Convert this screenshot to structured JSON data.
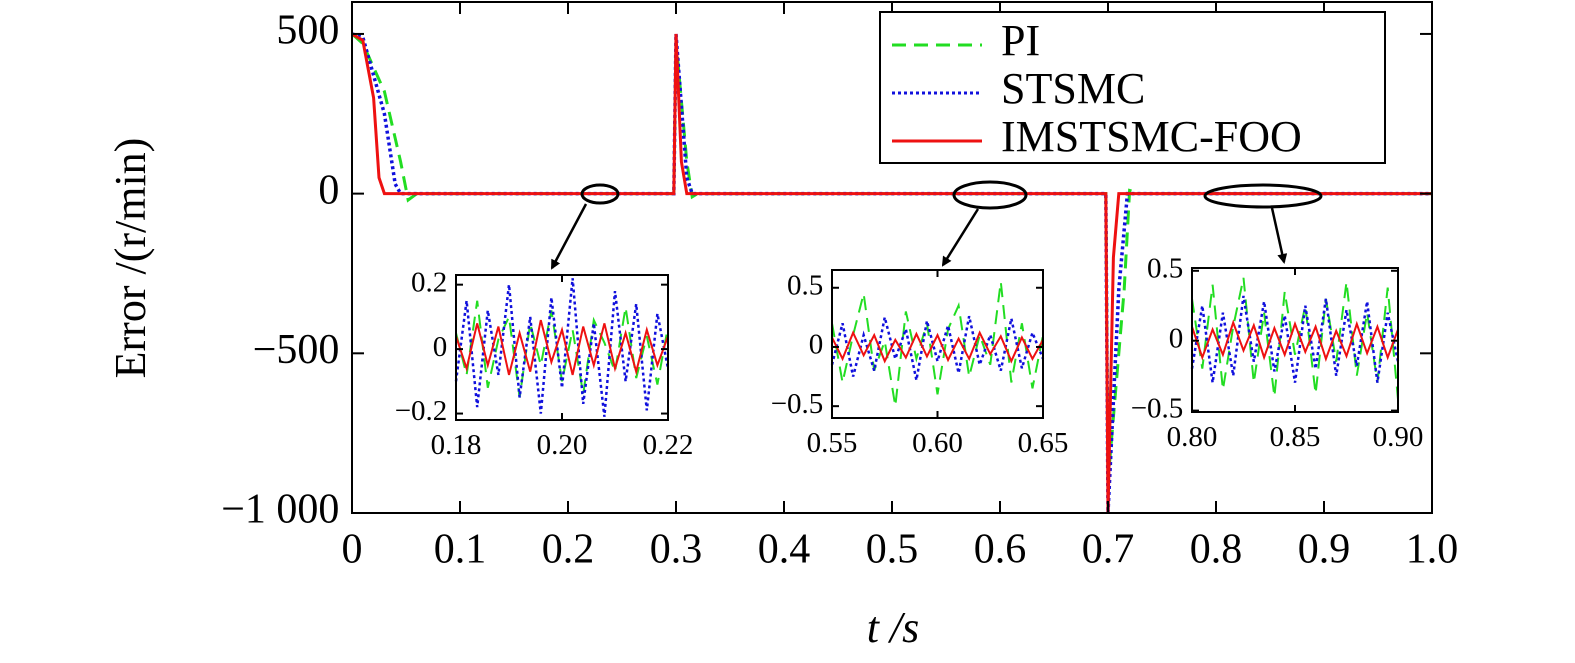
{
  "chart_data": [
    {
      "type": "line",
      "x_label": "t /s",
      "y_label": "Error /(r/min)",
      "legend": "upper right",
      "xlim": [
        0,
        1
      ],
      "ylim": [
        -1000,
        600
      ],
      "xticks": [
        0,
        0.1,
        0.2,
        0.3,
        0.4,
        0.5,
        0.6,
        0.7,
        0.8,
        0.9,
        {
          "value": 1,
          "label": "1.0"
        }
      ],
      "yticks": [
        500,
        0,
        {
          "value": -500,
          "label": "−500"
        },
        {
          "value": -1000,
          "label": "−1 000"
        }
      ],
      "series": [
        {
          "name": "PI",
          "color": "#22dd22",
          "style": "dashed",
          "x": [
            0,
            0.01,
            0.03,
            0.045,
            0.052,
            0.06,
            0.298,
            0.3,
            0.31,
            0.315,
            0.32,
            0.698,
            0.7,
            0.715,
            0.72,
            0.73,
            1
          ],
          "values": [
            500,
            470,
            320,
            100,
            -20,
            0,
            0,
            480,
            100,
            -10,
            0,
            0,
            -900,
            -300,
            10,
            0,
            0
          ]
        },
        {
          "name": "STSMC",
          "color": "#1010dd",
          "style": "dotted",
          "x": [
            0,
            0.01,
            0.03,
            0.04,
            0.045,
            0.298,
            0.3,
            0.31,
            0.315,
            0.698,
            0.7,
            0.71,
            0.718,
            1
          ],
          "values": [
            500,
            490,
            250,
            30,
            0,
            0,
            500,
            50,
            0,
            0,
            -1000,
            -300,
            0,
            0
          ]
        },
        {
          "name": "IMSTSMC-FOO",
          "color": "#ee1111",
          "style": "solid",
          "x": [
            0,
            0.01,
            0.02,
            0.025,
            0.03,
            0.298,
            0.3,
            0.305,
            0.31,
            0.698,
            0.7,
            0.705,
            0.71,
            1
          ],
          "values": [
            500,
            480,
            300,
            50,
            0,
            0,
            500,
            100,
            0,
            0,
            -1000,
            -200,
            0,
            0
          ]
        }
      ]
    },
    {
      "type": "line",
      "xlim": [
        0.18,
        0.22
      ],
      "ylim": [
        -0.22,
        0.23
      ],
      "xticks": [
        0.18,
        {
          "value": 0.2,
          "label": "0.20"
        },
        0.22
      ],
      "yticks": [
        0.2,
        0,
        {
          "value": -0.2,
          "label": "−0.2"
        }
      ],
      "x": [
        0.18,
        0.182,
        0.184,
        0.186,
        0.188,
        0.19,
        0.192,
        0.194,
        0.196,
        0.198,
        0.2,
        0.202,
        0.204,
        0.206,
        0.208,
        0.21,
        0.212,
        0.214,
        0.216,
        0.218,
        0.22
      ],
      "series": [
        {
          "color": "#22dd22",
          "style": "dashed",
          "values": [
            0.05,
            -0.08,
            0.15,
            -0.12,
            0.03,
            0.1,
            -0.15,
            0.08,
            -0.05,
            0.12,
            -0.1,
            0.06,
            -0.14,
            0.09,
            0.02,
            -0.07,
            0.13,
            -0.09,
            0.04,
            -0.11,
            0.07
          ]
        },
        {
          "color": "#1010dd",
          "style": "dotted",
          "values": [
            -0.1,
            0.15,
            -0.18,
            0.12,
            -0.08,
            0.2,
            -0.15,
            0.1,
            -0.2,
            0.16,
            -0.12,
            0.22,
            -0.17,
            0.08,
            -0.21,
            0.18,
            -0.1,
            0.14,
            -0.19,
            0.11,
            -0.06
          ]
        },
        {
          "color": "#ee1111",
          "style": "solid",
          "values": [
            0.04,
            -0.06,
            0.08,
            -0.05,
            0.07,
            -0.08,
            0.05,
            -0.07,
            0.09,
            -0.04,
            0.06,
            -0.08,
            0.07,
            -0.05,
            0.08,
            -0.06,
            0.05,
            -0.07,
            0.06,
            -0.05,
            0.04
          ]
        }
      ]
    },
    {
      "type": "line",
      "xlim": [
        0.55,
        0.65
      ],
      "ylim": [
        -0.6,
        0.65
      ],
      "xticks": [
        0.55,
        {
          "value": 0.6,
          "label": "0.60"
        },
        0.65
      ],
      "yticks": [
        0.5,
        0,
        {
          "value": -0.5,
          "label": "−0.5"
        }
      ],
      "x": [
        0.55,
        0.555,
        0.56,
        0.565,
        0.57,
        0.575,
        0.58,
        0.585,
        0.59,
        0.595,
        0.6,
        0.605,
        0.61,
        0.615,
        0.62,
        0.625,
        0.63,
        0.635,
        0.64,
        0.645,
        0.65
      ],
      "series": [
        {
          "color": "#22dd22",
          "style": "dashed",
          "values": [
            0.2,
            -0.3,
            0.1,
            0.45,
            -0.2,
            0.05,
            -0.5,
            0.3,
            -0.1,
            0.2,
            -0.4,
            0.15,
            0.35,
            -0.25,
            0.1,
            -0.15,
            0.55,
            -0.3,
            0.2,
            -0.35,
            0.1
          ]
        },
        {
          "color": "#1010dd",
          "style": "dotted",
          "values": [
            -0.15,
            0.2,
            -0.25,
            0.1,
            -0.2,
            0.25,
            -0.1,
            0.15,
            -0.28,
            0.22,
            -0.12,
            0.18,
            -0.22,
            0.26,
            -0.15,
            0.1,
            -0.2,
            0.24,
            -0.18,
            0.12,
            -0.1
          ]
        },
        {
          "color": "#ee1111",
          "style": "solid",
          "values": [
            0.08,
            -0.1,
            0.12,
            -0.07,
            0.1,
            -0.12,
            0.06,
            -0.09,
            0.11,
            -0.08,
            0.1,
            -0.11,
            0.07,
            -0.1,
            0.12,
            -0.06,
            0.09,
            -0.12,
            0.08,
            -0.1,
            0.06
          ]
        }
      ]
    },
    {
      "type": "line",
      "xlim": [
        0.8,
        0.9
      ],
      "ylim": [
        -0.51,
        0.52
      ],
      "xticks": [
        {
          "value": 0.8,
          "label": "0.80"
        },
        0.85,
        {
          "value": 0.9,
          "label": "0.90"
        }
      ],
      "yticks": [
        0.5,
        0,
        {
          "value": -0.5,
          "label": "−0.5"
        }
      ],
      "x": [
        0.8,
        0.805,
        0.81,
        0.815,
        0.82,
        0.825,
        0.83,
        0.835,
        0.84,
        0.845,
        0.85,
        0.855,
        0.86,
        0.865,
        0.87,
        0.875,
        0.88,
        0.885,
        0.89,
        0.895,
        0.9
      ],
      "series": [
        {
          "color": "#22dd22",
          "style": "dashed",
          "values": [
            0.3,
            -0.2,
            0.4,
            -0.35,
            0.1,
            0.45,
            -0.3,
            0.2,
            -0.4,
            0.35,
            -0.1,
            0.25,
            -0.38,
            0.3,
            -0.15,
            0.42,
            -0.25,
            0.2,
            -0.3,
            0.38,
            -0.42
          ]
        },
        {
          "color": "#1010dd",
          "style": "dotted",
          "values": [
            -0.2,
            0.25,
            -0.3,
            0.2,
            -0.25,
            0.32,
            -0.15,
            0.28,
            -0.22,
            0.18,
            -0.3,
            0.25,
            -0.2,
            0.3,
            -0.25,
            0.22,
            -0.18,
            0.28,
            -0.3,
            0.2,
            -0.15
          ]
        },
        {
          "color": "#ee1111",
          "style": "solid",
          "values": [
            0.1,
            -0.12,
            0.08,
            -0.1,
            0.13,
            -0.07,
            0.11,
            -0.12,
            0.09,
            -0.1,
            0.12,
            -0.08,
            0.1,
            -0.13,
            0.07,
            -0.11,
            0.12,
            -0.09,
            0.1,
            -0.12,
            0.08
          ]
        }
      ]
    }
  ]
}
